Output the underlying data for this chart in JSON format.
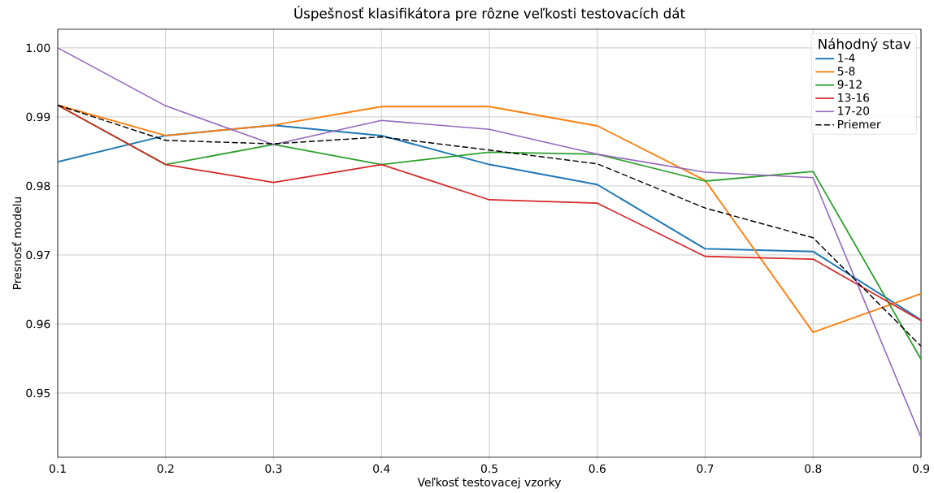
{
  "chart_data": {
    "type": "line",
    "title": "Úspešnosť klasifikátora pre rôzne veľkosti testovacích dát",
    "xlabel": "Veľkosť testovacej vzorky",
    "ylabel": "Presnosť modelu",
    "legend_title": "Náhodný stav",
    "x": [
      0.1,
      0.2,
      0.3,
      0.4,
      0.5,
      0.6,
      0.7,
      0.8,
      0.9
    ],
    "series": [
      {
        "name": "1-4",
        "color": "#1f77b4",
        "values": [
          0.9835,
          0.9873,
          0.9888,
          0.9873,
          0.9831,
          0.9802,
          0.9709,
          0.9705,
          0.9606
        ]
      },
      {
        "name": "5-8",
        "color": "#ff7f0e",
        "values": [
          0.9917,
          0.9873,
          0.9888,
          0.9915,
          0.9915,
          0.9887,
          0.9808,
          0.9588,
          0.9644
        ]
      },
      {
        "name": "9-12",
        "color": "#2ca02c",
        "values": [
          0.9917,
          0.9831,
          0.986,
          0.9831,
          0.9849,
          0.9846,
          0.9807,
          0.9821,
          0.9549
        ]
      },
      {
        "name": "13-16",
        "color": "#d62728",
        "values": [
          0.9917,
          0.9831,
          0.9805,
          0.9831,
          0.978,
          0.9775,
          0.9698,
          0.9694,
          0.9605
        ]
      },
      {
        "name": "17-20",
        "color": "#9467bd",
        "values": [
          1.0,
          0.9916,
          0.986,
          0.9895,
          0.9882,
          0.9846,
          0.982,
          0.9812,
          0.9436
        ]
      },
      {
        "name": "Priemer",
        "color": "#000000",
        "line_style": "dashed",
        "values": [
          0.9917,
          0.9866,
          0.9861,
          0.9871,
          0.9852,
          0.9832,
          0.9768,
          0.9725,
          0.9568
        ]
      }
    ],
    "xlim": [
      0.1,
      0.9
    ],
    "ylim": [
      0.9407,
      1.0027
    ],
    "xticks": [
      0.1,
      0.2,
      0.3,
      0.4,
      0.5,
      0.6,
      0.7,
      0.8,
      0.9
    ],
    "yticks": [
      0.95,
      0.96,
      0.97,
      0.98,
      0.99,
      {
        "value": 1.0,
        "label": "1.00"
      }
    ],
    "grid": true,
    "legend": "top right"
  }
}
